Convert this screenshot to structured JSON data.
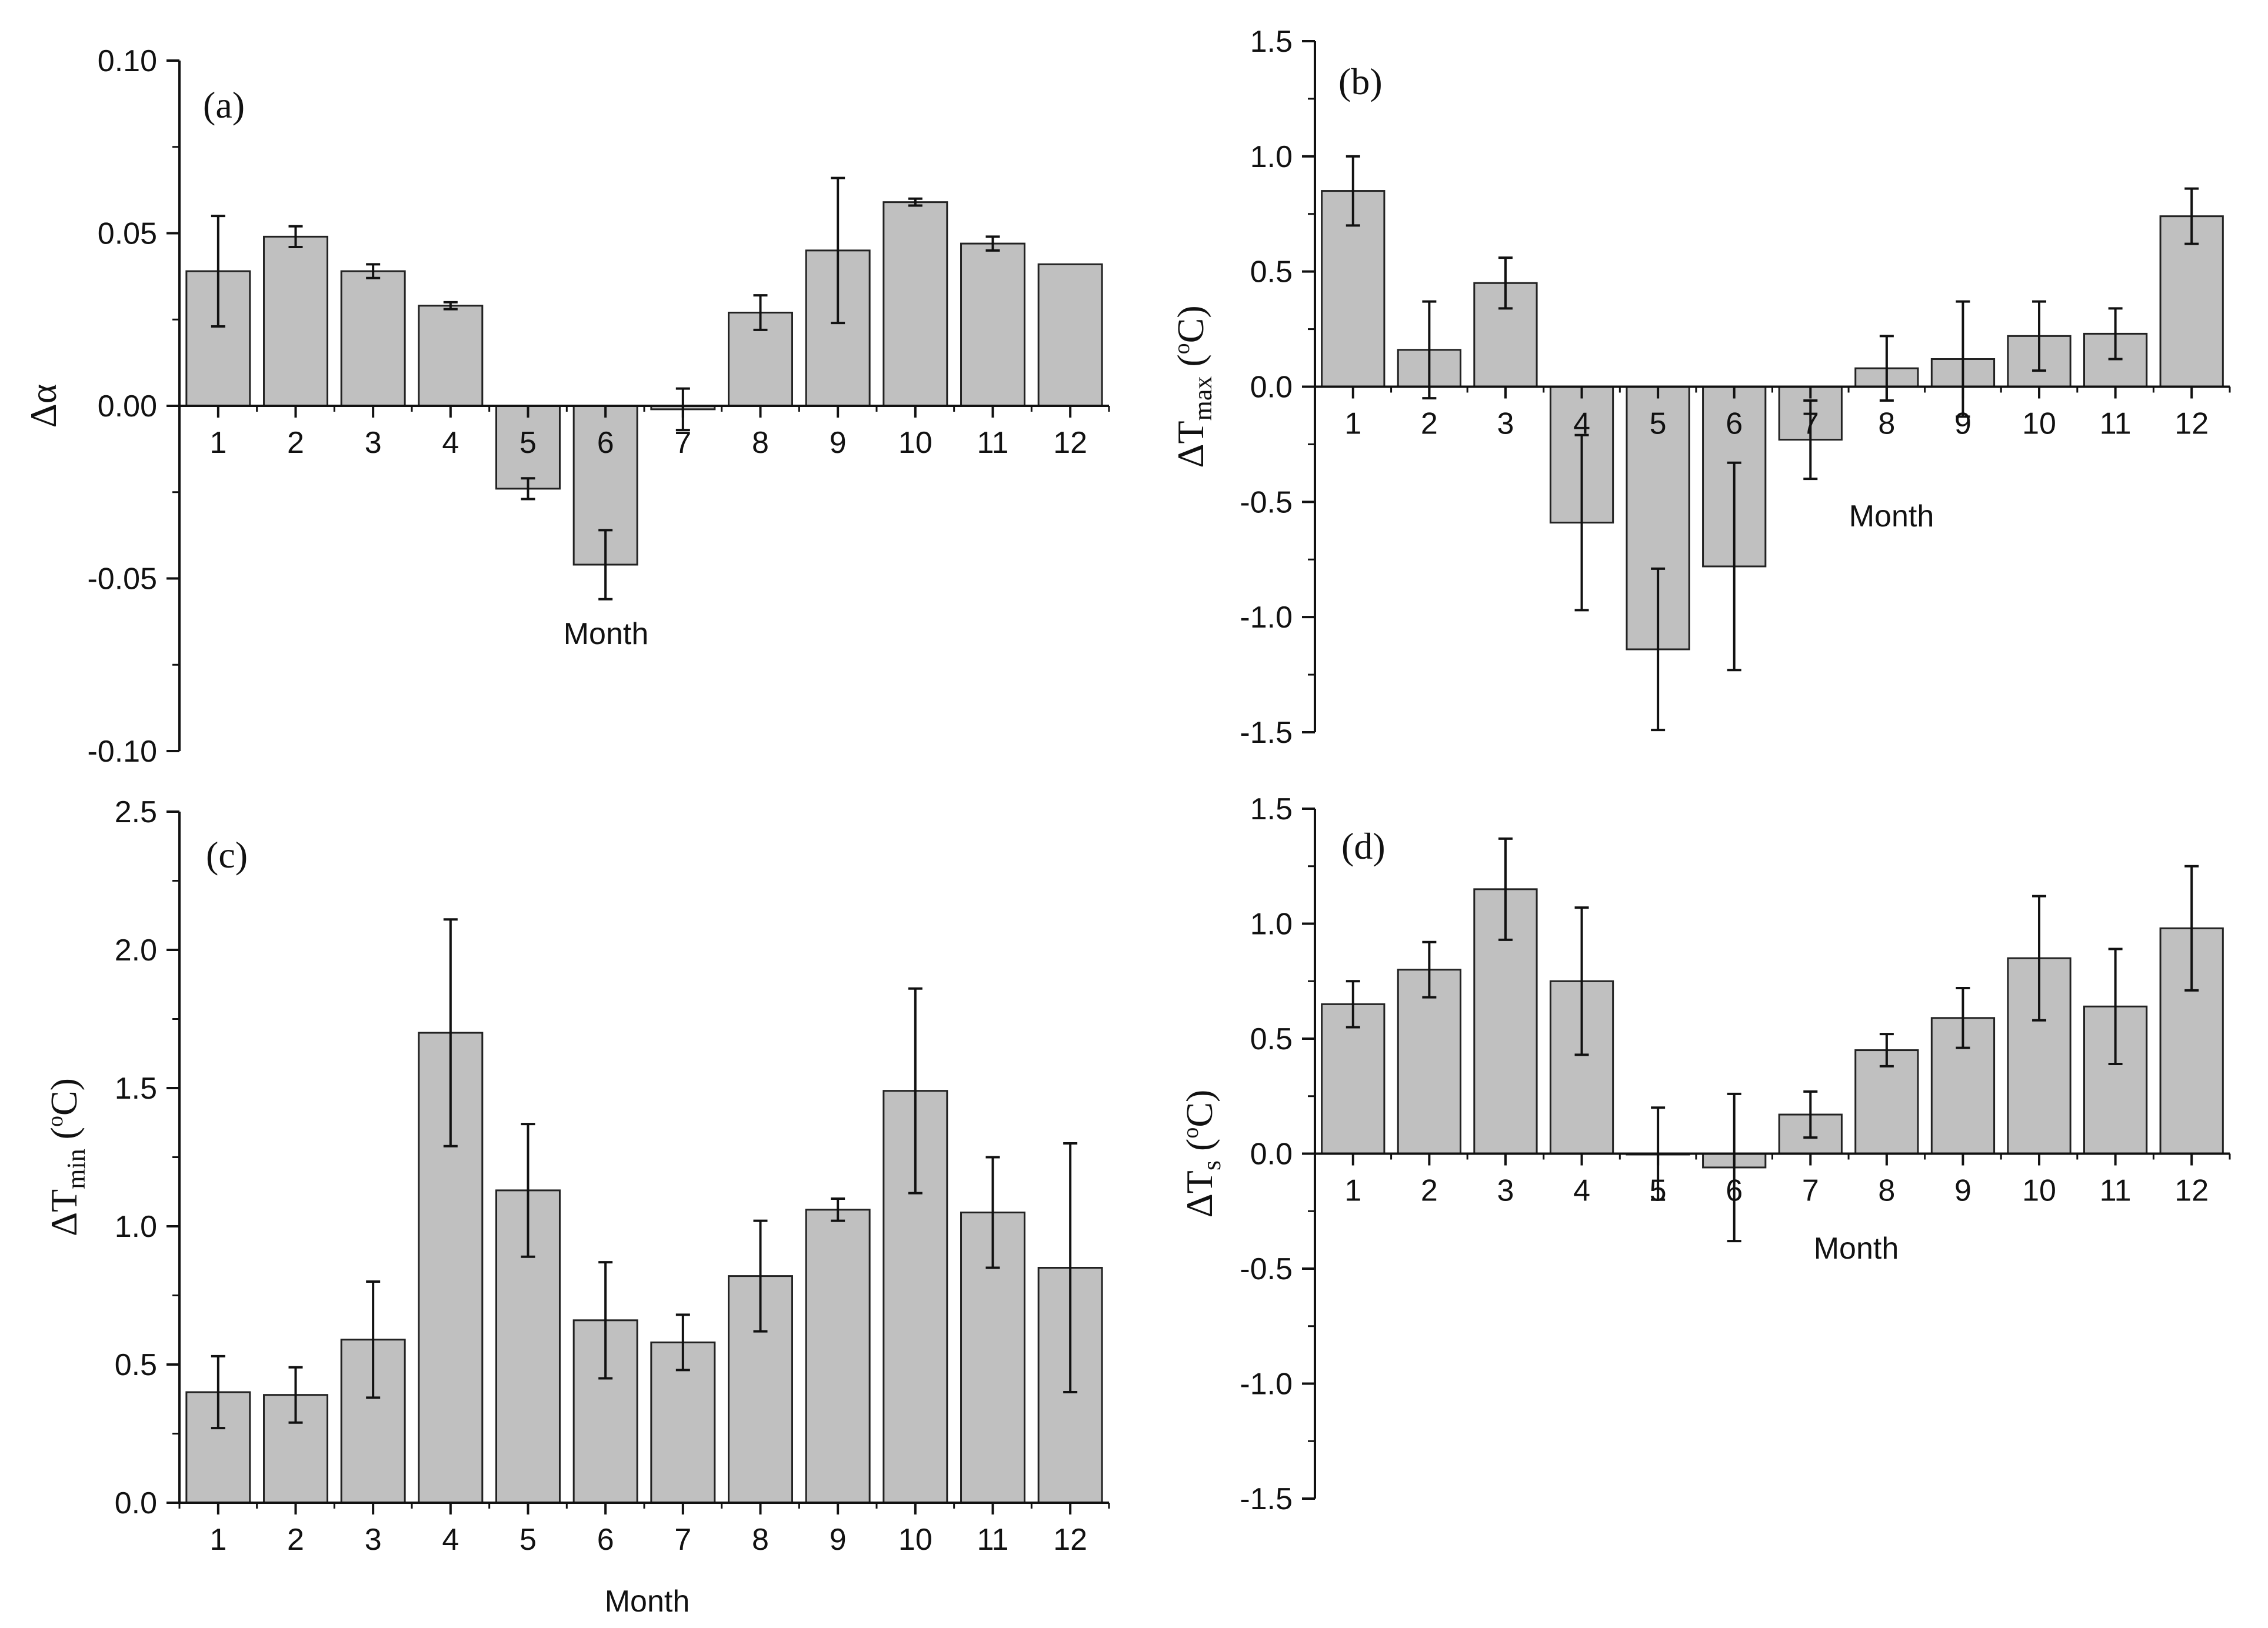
{
  "bar_color": "#c0c0c0",
  "chart_data": [
    {
      "type": "bar",
      "panel_tag": "(a)",
      "ylabel": {
        "main": "Δα",
        "sub": "",
        "sup": "",
        "unit_open": "",
        "unit_close": ""
      },
      "xlabel": "Month",
      "categories": [
        "1",
        "2",
        "3",
        "4",
        "5",
        "6",
        "7",
        "8",
        "9",
        "10",
        "11",
        "12"
      ],
      "values": [
        0.039,
        0.049,
        0.039,
        0.029,
        -0.024,
        -0.046,
        -0.001,
        0.027,
        0.045,
        0.059,
        0.047,
        0.041
      ],
      "errors": [
        0.016,
        0.003,
        0.002,
        0.001,
        0.003,
        0.01,
        0.006,
        0.005,
        0.021,
        0.001,
        0.002,
        0.0
      ],
      "ylim": [
        -0.1,
        0.1
      ],
      "yticks": [
        -0.1,
        -0.05,
        0.0,
        0.05,
        0.1
      ],
      "ytick_labels": [
        "-0.10",
        "-0.05",
        "0.00",
        "0.05",
        "0.10"
      ]
    },
    {
      "type": "bar",
      "panel_tag": "(b)",
      "ylabel": {
        "main": "ΔT",
        "sub": "max",
        "sup": "o",
        "unit_open": " (",
        "unit_close": "C)"
      },
      "xlabel": "Month",
      "categories": [
        "1",
        "2",
        "3",
        "4",
        "5",
        "6",
        "7",
        "8",
        "9",
        "10",
        "11",
        "12"
      ],
      "values": [
        0.85,
        0.16,
        0.45,
        -0.59,
        -1.14,
        -0.78,
        -0.23,
        0.08,
        0.12,
        0.22,
        0.23,
        0.74
      ],
      "errors": [
        0.15,
        0.21,
        0.11,
        0.38,
        0.35,
        0.45,
        0.17,
        0.14,
        0.25,
        0.15,
        0.11,
        0.12
      ],
      "ylim": [
        -1.5,
        1.5
      ],
      "yticks": [
        -1.5,
        -1.0,
        -0.5,
        0.0,
        0.5,
        1.0,
        1.5
      ],
      "ytick_labels": [
        "-1.5",
        "-1.0",
        "-0.5",
        "0.0",
        "0.5",
        "1.0",
        "1.5"
      ]
    },
    {
      "type": "bar",
      "panel_tag": "(c)",
      "ylabel": {
        "main": "ΔT",
        "sub": "min",
        "sup": "o",
        "unit_open": " (",
        "unit_close": "C)"
      },
      "xlabel": "Month",
      "categories": [
        "1",
        "2",
        "3",
        "4",
        "5",
        "6",
        "7",
        "8",
        "9",
        "10",
        "11",
        "12"
      ],
      "values": [
        0.4,
        0.39,
        0.59,
        1.7,
        1.13,
        0.66,
        0.58,
        0.82,
        1.06,
        1.49,
        1.05,
        0.85
      ],
      "errors": [
        0.13,
        0.1,
        0.21,
        0.41,
        0.24,
        0.21,
        0.1,
        0.2,
        0.04,
        0.37,
        0.2,
        0.45
      ],
      "ylim": [
        0.0,
        2.5
      ],
      "yticks": [
        0.0,
        0.5,
        1.0,
        1.5,
        2.0,
        2.5
      ],
      "ytick_labels": [
        "0.0",
        "0.5",
        "1.0",
        "1.5",
        "2.0",
        "2.5"
      ]
    },
    {
      "type": "bar",
      "panel_tag": "(d)",
      "ylabel": {
        "main": "ΔT",
        "sub": "s",
        "sup": "o",
        "unit_open": " (",
        "unit_close": "C)"
      },
      "xlabel": "Month",
      "categories": [
        "1",
        "2",
        "3",
        "4",
        "5",
        "6",
        "7",
        "8",
        "9",
        "10",
        "11",
        "12"
      ],
      "values": [
        0.65,
        0.8,
        1.15,
        0.75,
        0.0,
        -0.06,
        0.17,
        0.45,
        0.59,
        0.85,
        0.64,
        0.98
      ],
      "errors": [
        0.1,
        0.12,
        0.22,
        0.32,
        0.2,
        0.32,
        0.1,
        0.07,
        0.13,
        0.27,
        0.25,
        0.27
      ],
      "ylim": [
        -1.5,
        1.5
      ],
      "yticks": [
        -1.5,
        -1.0,
        -0.5,
        0.0,
        0.5,
        1.0,
        1.5
      ],
      "ytick_labels": [
        "-1.5",
        "-1.0",
        "-0.5",
        "0.0",
        "0.5",
        "1.0",
        "1.5"
      ]
    }
  ]
}
